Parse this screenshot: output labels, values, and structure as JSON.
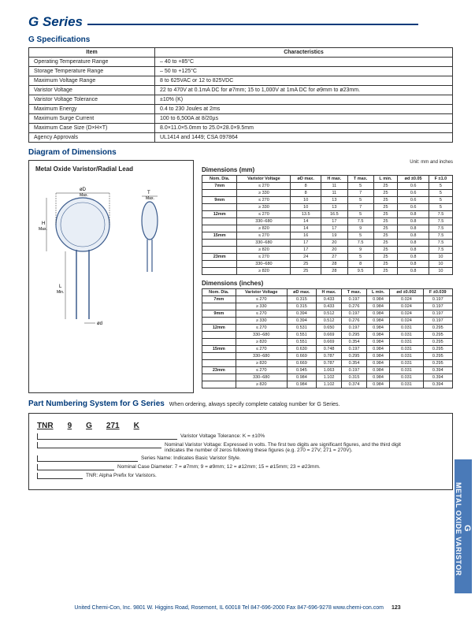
{
  "header": {
    "title": "G Series"
  },
  "spec": {
    "heading": "G Specifications",
    "cols": [
      "Item",
      "Characteristics"
    ],
    "rows": [
      [
        "Operating Temperature Range",
        "– 40 to +85°C"
      ],
      [
        "Storage Temperature Range",
        "– 50 to +125°C"
      ],
      [
        "Maximum Voltage Range",
        "8 to 625VAC or 12 to 825VDC"
      ],
      [
        "Varistor Voltage",
        "22 to 470V at 0.1mA DC for ø7mm; 15 to 1,000V at 1mA DC for ø9mm to ø23mm."
      ],
      [
        "Varistor Voltage Tolerance",
        "±10% (K)"
      ],
      [
        "Maximum Energy",
        "0.4 to 230 Joules at 2ms"
      ],
      [
        "Maximum Surge Current",
        "100 to 6,500A at 8/20µs"
      ],
      [
        "Maximum Case Size (D×H×T)",
        "8.0×11.0×5.0mm to 25.0×28.0×9.5mm"
      ],
      [
        "Agency Approvals",
        "UL1414 and 1449; CSA 097864"
      ]
    ]
  },
  "dim": {
    "heading": "Diagram of Dimensions",
    "left_title": "Metal Oxide Varistor/Radial Lead",
    "unit_note": "Unit: mm and inches",
    "mm_h": "Dimensions (mm)",
    "in_h": "Dimensions (inches)",
    "cols": [
      "Nom. Dia.",
      "Varistor Voltage",
      "øD max.",
      "H max.",
      "T max.",
      "L min.",
      "ød ±0.05",
      "F ±1.0"
    ],
    "cols_in": [
      "Nom. Dia.",
      "Varistor Voltage",
      "øD max.",
      "H max.",
      "T max.",
      "L min.",
      "ød ±0.002",
      "F ±0.039"
    ],
    "mm_rows": [
      [
        "7mm",
        "≤ 270",
        "8",
        "11",
        "5",
        "25",
        "0.6",
        "5"
      ],
      [
        "",
        "≥ 330",
        "8",
        "11",
        "7",
        "25",
        "0.6",
        "5"
      ],
      [
        "9mm",
        "≤ 270",
        "10",
        "13",
        "5",
        "25",
        "0.6",
        "5"
      ],
      [
        "",
        "≥ 330",
        "10",
        "13",
        "7",
        "25",
        "0.6",
        "5"
      ],
      [
        "12mm",
        "≤ 270",
        "13.5",
        "16.5",
        "5",
        "25",
        "0.8",
        "7.5"
      ],
      [
        "",
        "330–680",
        "14",
        "17",
        "7.5",
        "25",
        "0.8",
        "7.5"
      ],
      [
        "",
        "≥ 820",
        "14",
        "17",
        "9",
        "25",
        "0.8",
        "7.5"
      ],
      [
        "15mm",
        "≤ 270",
        "16",
        "19",
        "5",
        "25",
        "0.8",
        "7.5"
      ],
      [
        "",
        "330–680",
        "17",
        "20",
        "7.5",
        "25",
        "0.8",
        "7.5"
      ],
      [
        "",
        "≥ 820",
        "17",
        "20",
        "9",
        "25",
        "0.8",
        "7.5"
      ],
      [
        "23mm",
        "≤ 270",
        "24",
        "27",
        "5",
        "25",
        "0.8",
        "10"
      ],
      [
        "",
        "330–680",
        "25",
        "28",
        "8",
        "25",
        "0.8",
        "10"
      ],
      [
        "",
        "≥ 820",
        "25",
        "28",
        "9.5",
        "25",
        "0.8",
        "10"
      ]
    ],
    "in_rows": [
      [
        "7mm",
        "≤ 270",
        "0.315",
        "0.433",
        "0.197",
        "0.984",
        "0.024",
        "0.197"
      ],
      [
        "",
        "≥ 330",
        "0.315",
        "0.433",
        "0.276",
        "0.984",
        "0.024",
        "0.197"
      ],
      [
        "9mm",
        "≤ 270",
        "0.394",
        "0.512",
        "0.197",
        "0.984",
        "0.024",
        "0.197"
      ],
      [
        "",
        "≥ 330",
        "0.394",
        "0.512",
        "0.276",
        "0.984",
        "0.024",
        "0.197"
      ],
      [
        "12mm",
        "≤ 270",
        "0.531",
        "0.650",
        "0.197",
        "0.984",
        "0.031",
        "0.295"
      ],
      [
        "",
        "330–680",
        "0.551",
        "0.669",
        "0.295",
        "0.984",
        "0.031",
        "0.295"
      ],
      [
        "",
        "≥ 820",
        "0.551",
        "0.669",
        "0.354",
        "0.984",
        "0.031",
        "0.295"
      ],
      [
        "15mm",
        "≤ 270",
        "0.630",
        "0.748",
        "0.197",
        "0.984",
        "0.031",
        "0.295"
      ],
      [
        "",
        "330–680",
        "0.669",
        "0.787",
        "0.295",
        "0.984",
        "0.031",
        "0.295"
      ],
      [
        "",
        "≥ 820",
        "0.669",
        "0.787",
        "0.354",
        "0.984",
        "0.031",
        "0.295"
      ],
      [
        "23mm",
        "≤ 270",
        "0.945",
        "1.063",
        "0.197",
        "0.984",
        "0.031",
        "0.394"
      ],
      [
        "",
        "330–680",
        "0.984",
        "1.102",
        "0.315",
        "0.984",
        "0.031",
        "0.394"
      ],
      [
        "",
        "≥ 820",
        "0.984",
        "1.102",
        "0.374",
        "0.984",
        "0.031",
        "0.394"
      ]
    ]
  },
  "pn": {
    "heading": "Part Numbering System for G Series",
    "note": "When ordering, always specify complete catalog number for G Series.",
    "parts": [
      "TNR",
      "9",
      "G",
      "271",
      "K"
    ],
    "lines": [
      "Varistor Voltage Tolerance: K = ±10%",
      "Nominal Varistor Voltage: Expressed in volts. The first two digits are significant figures, and the third digit indicates the number of zeros following these figures (e.g. 270 = 27V; 271 = 270V).",
      "Series Name: Indicates Basic Varistor Style.",
      "Nominal Case Diameter: 7 = ø7mm; 9 = ø9mm; 12 = ø12mm; 15 = ø15mm; 23 = ø23mm.",
      "TNR: Alpha Prefix for Varistors."
    ]
  },
  "side_tab": {
    "line1": "G",
    "line2": "METAL OXIDE VARISTOR"
  },
  "footer": {
    "text": "United Chemi-Con, Inc. 9801 W. Higgins Road, Rosemont, IL 60018  Tel 847-696-2000  Fax 847-696-9278  www.chemi-con.com",
    "page": "123"
  },
  "svg_labels": {
    "d": "øD",
    "t": "T",
    "h": "H",
    "l": "L",
    "od": "ød",
    "max": "Max.",
    "min": "Min."
  }
}
